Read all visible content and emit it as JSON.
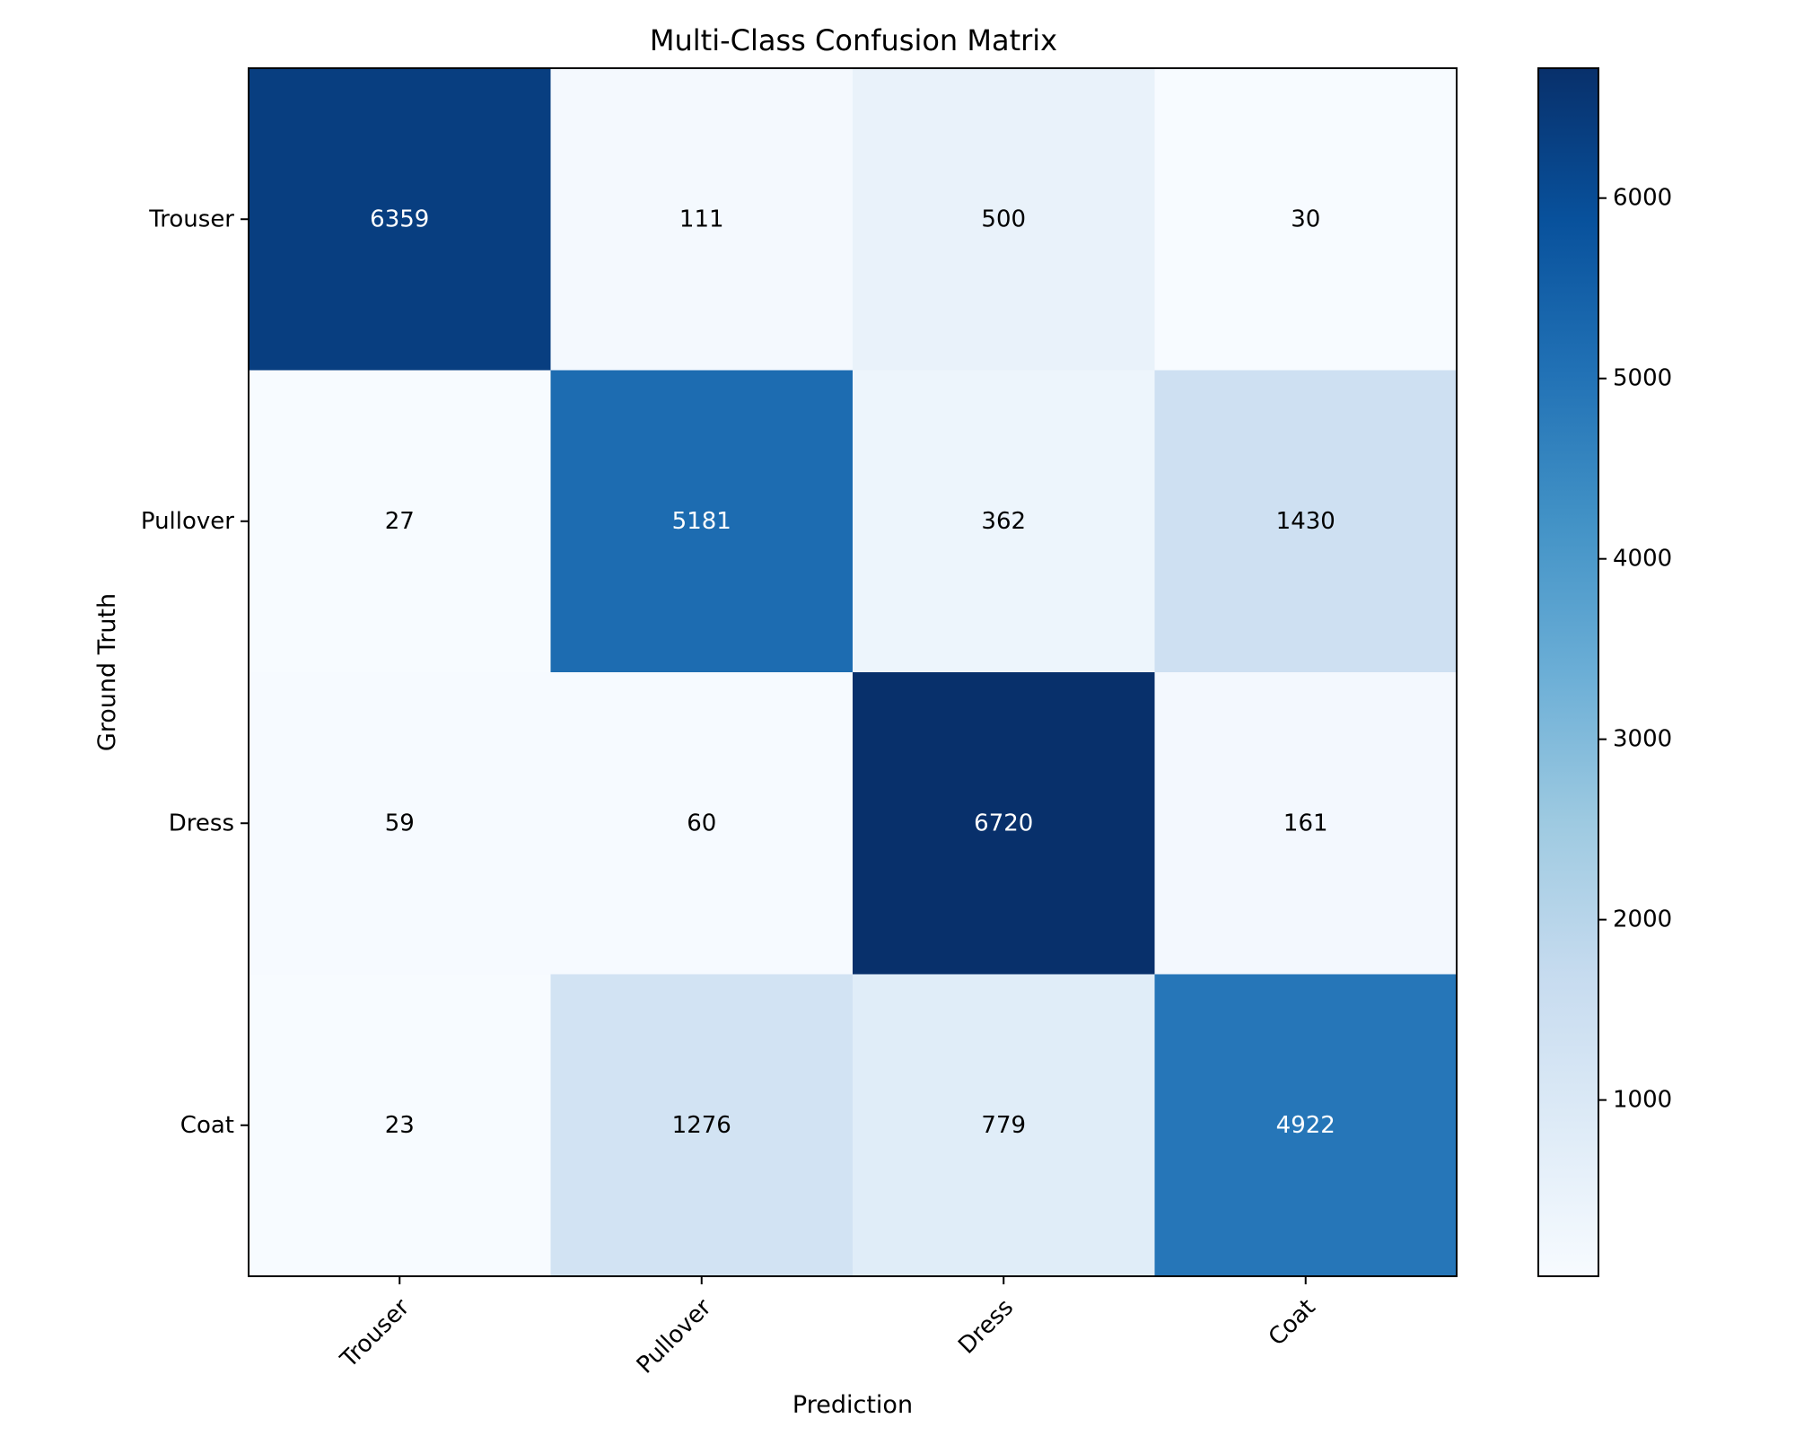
{
  "chart_data": {
    "type": "heatmap",
    "title": "Multi-Class Confusion Matrix",
    "xlabel": "Prediction",
    "ylabel": "Ground Truth",
    "x_categories": [
      "Trouser",
      "Pullover",
      "Dress",
      "Coat"
    ],
    "y_categories": [
      "Trouser",
      "Pullover",
      "Dress",
      "Coat"
    ],
    "values": [
      [
        6359,
        111,
        500,
        30
      ],
      [
        27,
        5181,
        362,
        1430
      ],
      [
        59,
        60,
        6720,
        161
      ],
      [
        23,
        1276,
        779,
        4922
      ]
    ],
    "colormap": "Blues",
    "color_range": [
      23,
      6720
    ],
    "colorbar_ticks": [
      1000,
      2000,
      3000,
      4000,
      5000,
      6000
    ],
    "colorbar_tick_labels": [
      "1000",
      "2000",
      "3000",
      "4000",
      "5000",
      "6000"
    ],
    "text_color_dark": "#000000",
    "text_color_light": "#ffffff"
  }
}
